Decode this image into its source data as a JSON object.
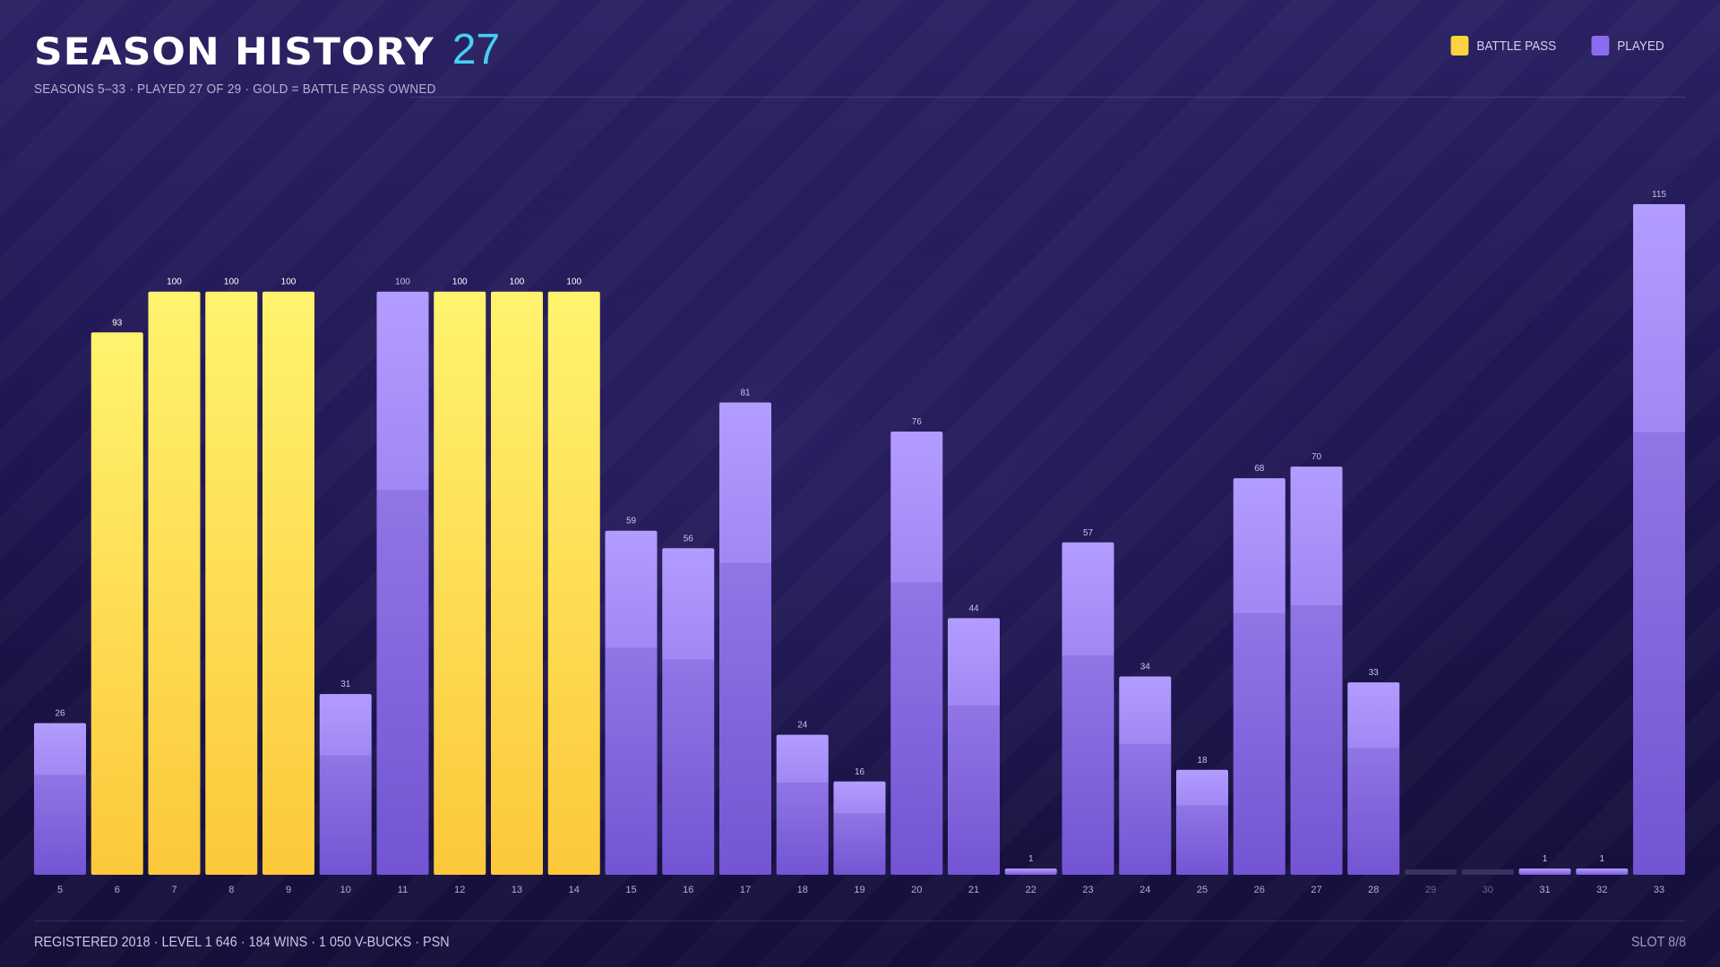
{
  "header": {
    "title": "SEASON HISTORY",
    "count": "27",
    "subtitle": "SEASONS 5–33  ·  PLAYED 27 OF 29  ·  GOLD = BATTLE PASS OWNED"
  },
  "legend": [
    {
      "label": "BATTLE PASS",
      "color": "#ffd23f"
    },
    {
      "label": "PLAYED",
      "color": "#8b6cf0"
    }
  ],
  "footer": {
    "left": "REGISTERED 2018  ·  LEVEL 1 646  ·  184 WINS  ·  1 050 V-BUCKS  ·  PSN",
    "right": "SLOT 8/8"
  },
  "chart_data": {
    "type": "bar",
    "categories": [
      "5",
      "6",
      "7",
      "8",
      "9",
      "10",
      "11",
      "12",
      "13",
      "14",
      "15",
      "16",
      "17",
      "18",
      "19",
      "20",
      "21",
      "22",
      "23",
      "24",
      "25",
      "26",
      "27",
      "28",
      "29",
      "30",
      "31",
      "32",
      "33"
    ],
    "values": [
      26,
      93,
      100,
      100,
      100,
      31,
      100,
      100,
      100,
      100,
      59,
      56,
      81,
      24,
      16,
      76,
      44,
      1,
      57,
      34,
      18,
      68,
      70,
      33,
      null,
      null,
      1,
      1,
      115
    ],
    "battle_pass": [
      false,
      true,
      true,
      true,
      true,
      false,
      false,
      true,
      true,
      true,
      false,
      false,
      false,
      false,
      false,
      false,
      false,
      false,
      false,
      false,
      false,
      false,
      false,
      false,
      false,
      false,
      false,
      false,
      false
    ],
    "played": [
      true,
      true,
      true,
      true,
      true,
      true,
      true,
      true,
      true,
      true,
      true,
      true,
      true,
      true,
      true,
      true,
      true,
      true,
      true,
      true,
      true,
      true,
      true,
      true,
      false,
      false,
      true,
      true,
      true
    ],
    "ylim": [
      0,
      115
    ],
    "colors": {
      "gold_top": "#fff36e",
      "gold_bottom": "#fcc83a",
      "purple_top": "#b39cff",
      "purple_bottom": "#7d5fdc",
      "unplayed": "#3a3160"
    },
    "grid": false
  }
}
